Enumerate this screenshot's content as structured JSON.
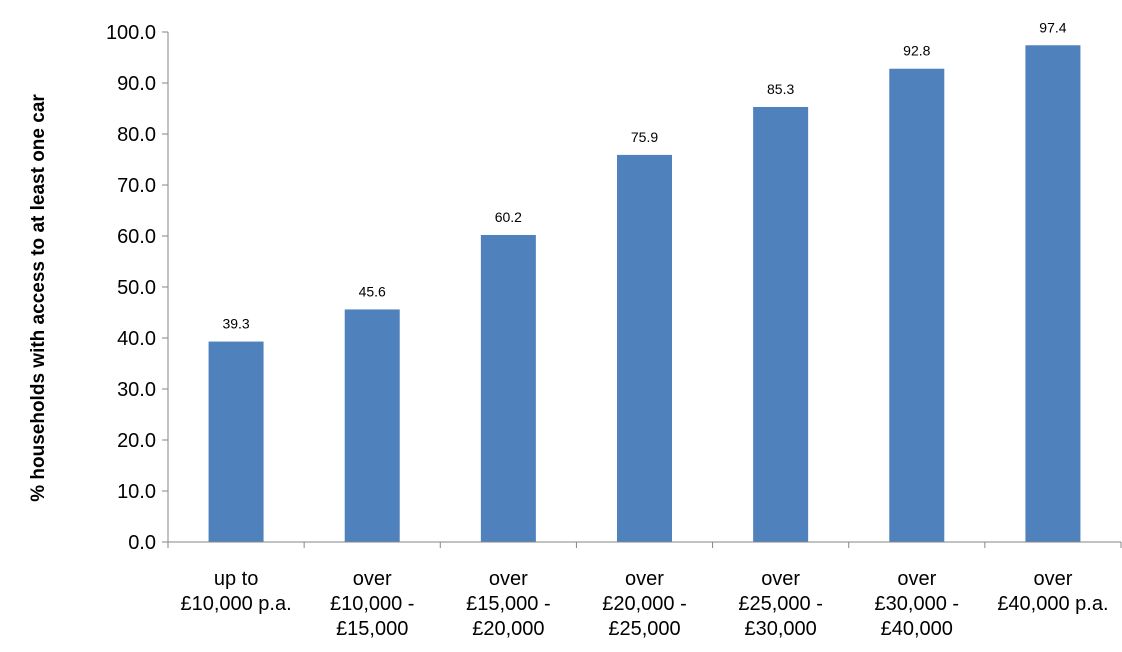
{
  "chart_data": {
    "type": "bar",
    "title": "",
    "xlabel": "",
    "ylabel": "% households with access to at least one car",
    "ylim": [
      0,
      100
    ],
    "ytick_step": 10,
    "ytick_format": "one-decimal",
    "grid": false,
    "legend": "none",
    "bar_color": "#4F81BD",
    "categories": [
      [
        "up to",
        "£10,000 p.a."
      ],
      [
        "over",
        "£10,000 -",
        "£15,000"
      ],
      [
        "over",
        "£15,000 -",
        "£20,000"
      ],
      [
        "over",
        "£20,000 -",
        "£25,000"
      ],
      [
        "over",
        "£25,000 -",
        "£30,000"
      ],
      [
        "over",
        "£30,000 -",
        "£40,000"
      ],
      [
        "over",
        "£40,000 p.a."
      ]
    ],
    "values": [
      39.3,
      45.6,
      60.2,
      75.9,
      85.3,
      92.8,
      97.4
    ],
    "data_labels": [
      "39.3",
      "45.6",
      "60.2",
      "75.9",
      "85.3",
      "92.8",
      "97.4"
    ]
  }
}
